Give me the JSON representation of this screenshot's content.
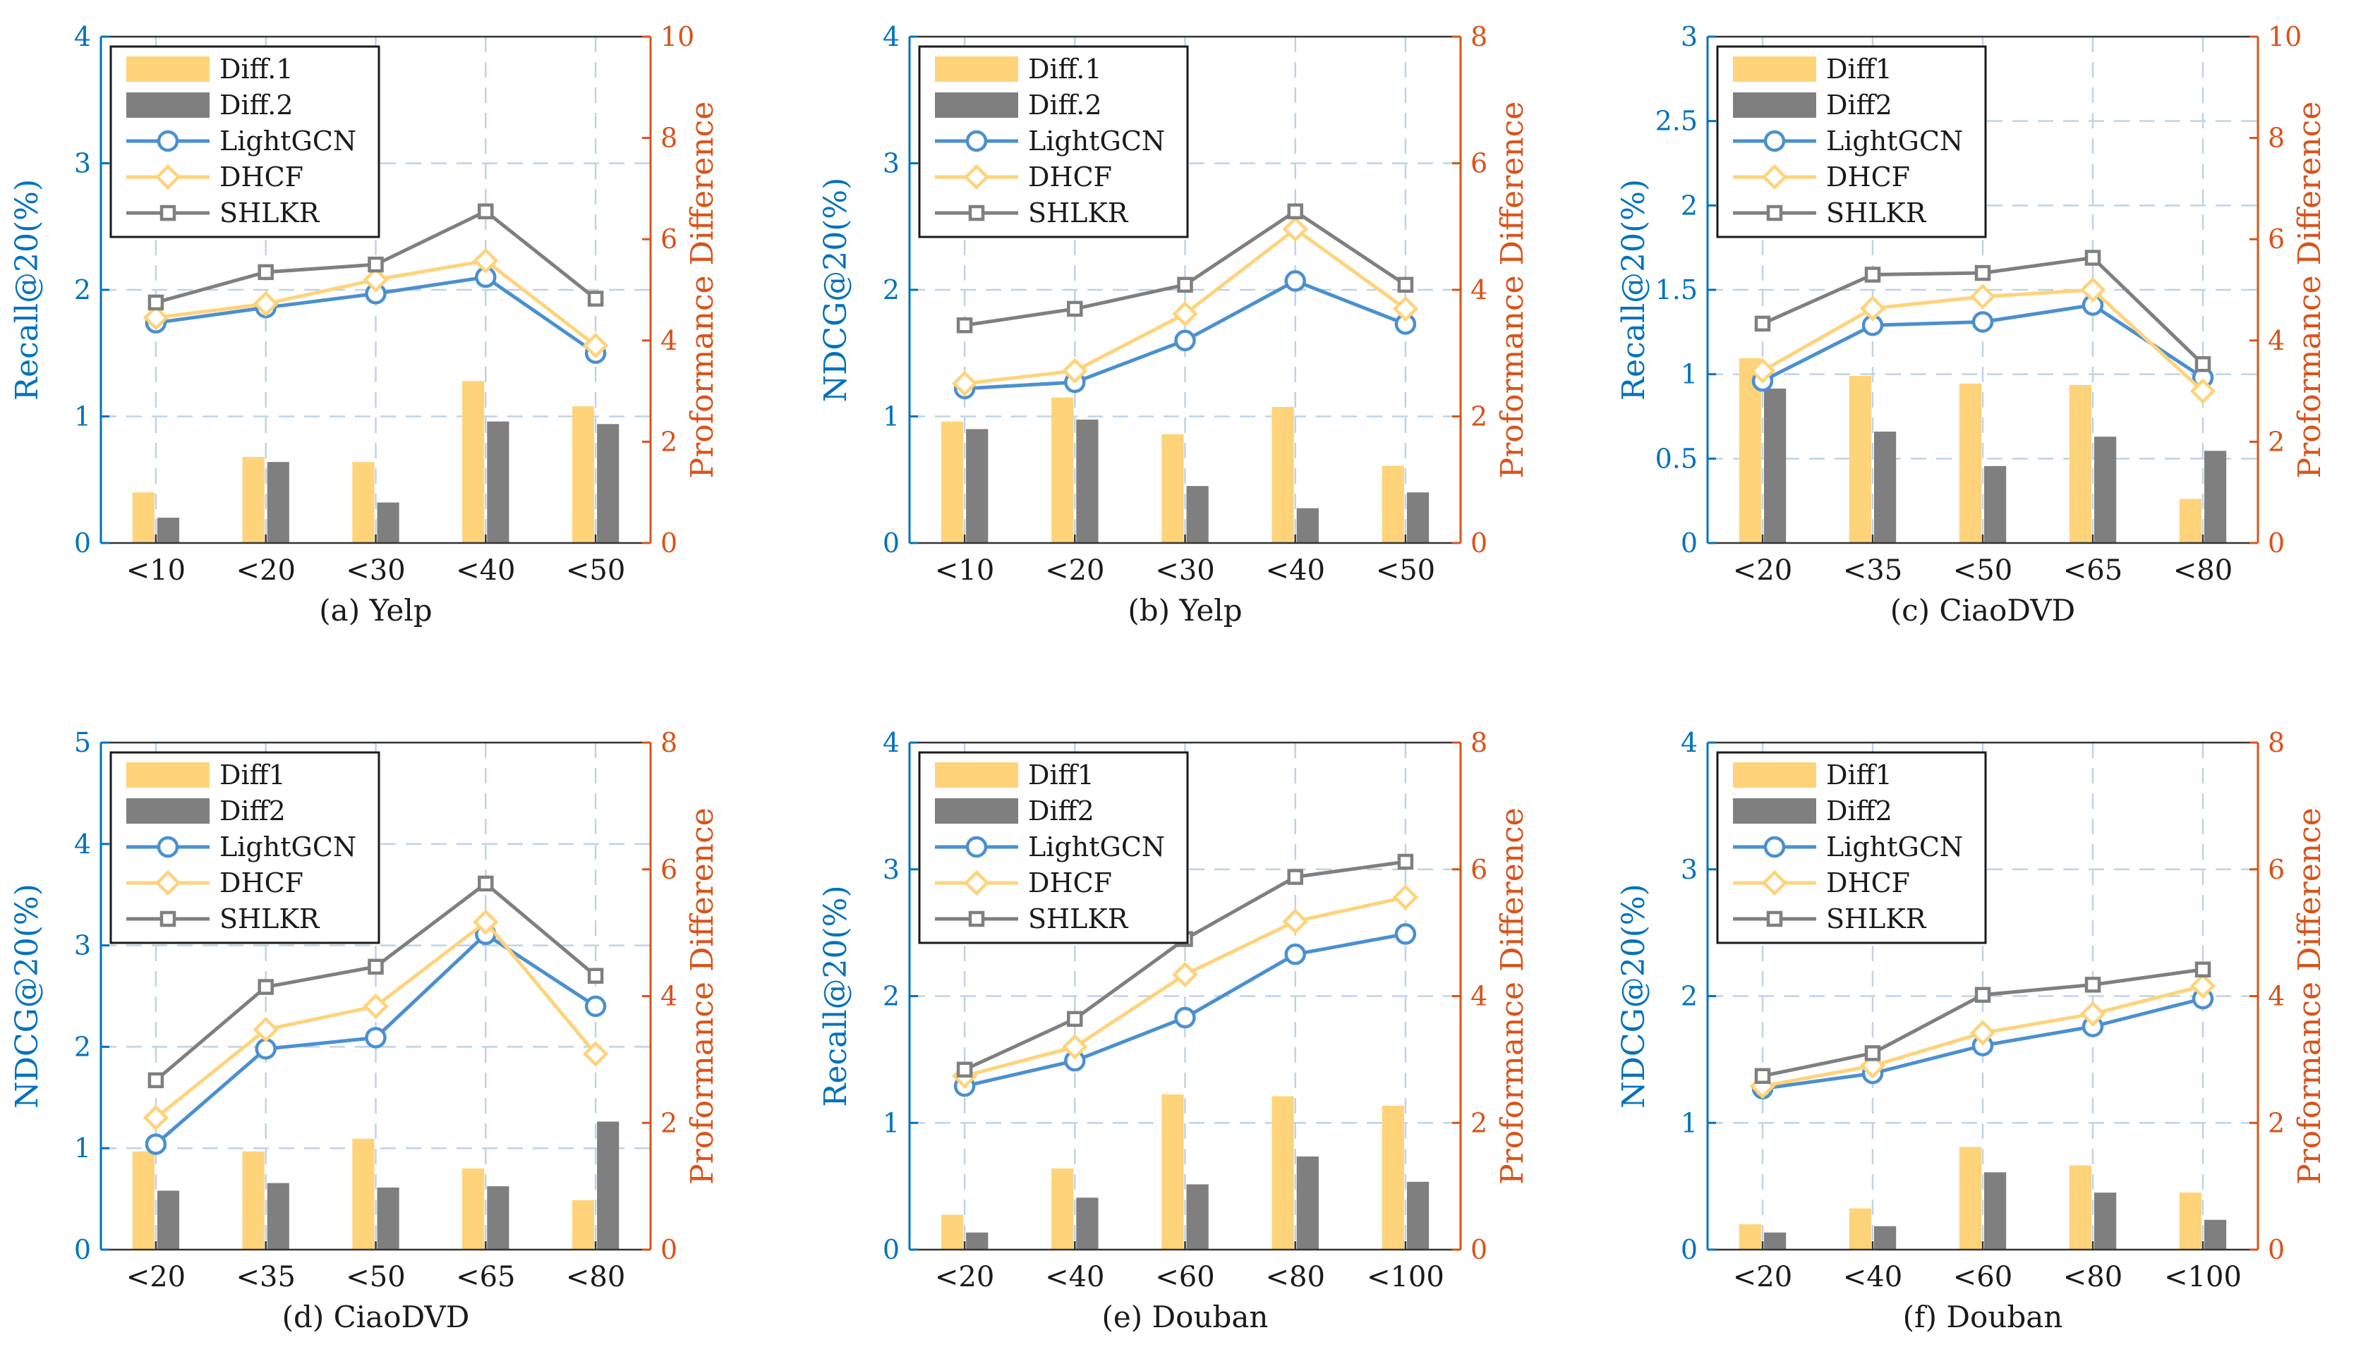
{
  "colors": {
    "left_axis": "#0072BD",
    "right_axis": "#D95319",
    "diff1": "#FFD37A",
    "diff2": "#7F7F7F",
    "lightgcn": "#4A90D0",
    "dhcf": "#FFD37A",
    "shlkr": "#7F7F7F",
    "grid": "#BFD3E6"
  },
  "chart_data": [
    {
      "type": "bar+line",
      "title": "(a) Yelp",
      "categories": [
        "<10",
        "<20",
        "<30",
        "<40",
        "<50"
      ],
      "ylabel": "Recall@20(%)",
      "ylabel_right": "Proformance Difference",
      "ylim": [
        0,
        4
      ],
      "yticks": [
        "0",
        "1",
        "2",
        "3",
        "4"
      ],
      "ylim_right": [
        0,
        10
      ],
      "yticks_right": [
        "0",
        "2",
        "4",
        "6",
        "8",
        "10"
      ],
      "legend": [
        "Diff.1",
        "Diff.2",
        "LightGCN",
        "DHCF",
        "SHLKR"
      ],
      "bars": [
        {
          "name": "Diff.1",
          "values": [
            1.0,
            1.7,
            1.6,
            3.2,
            2.7
          ]
        },
        {
          "name": "Diff.2",
          "values": [
            0.5,
            1.6,
            0.8,
            2.4,
            2.35
          ]
        }
      ],
      "lines": [
        {
          "name": "LightGCN",
          "values": [
            1.74,
            1.86,
            1.97,
            2.1,
            1.5
          ]
        },
        {
          "name": "DHCF",
          "values": [
            1.78,
            1.89,
            2.08,
            2.23,
            1.56
          ]
        },
        {
          "name": "SHLKR",
          "values": [
            1.9,
            2.14,
            2.2,
            2.62,
            1.93
          ]
        }
      ]
    },
    {
      "type": "bar+line",
      "title": "(b) Yelp",
      "categories": [
        "<10",
        "<20",
        "<30",
        "<40",
        "<50"
      ],
      "ylabel": "NDCG@20(%)",
      "ylabel_right": "Proformance Difference",
      "ylim": [
        0,
        4
      ],
      "yticks": [
        "0",
        "1",
        "2",
        "3",
        "4"
      ],
      "ylim_right": [
        0,
        8
      ],
      "yticks_right": [
        "0",
        "2",
        "4",
        "6",
        "8"
      ],
      "legend": [
        "Diff.1",
        "Diff.2",
        "LightGCN",
        "DHCF",
        "SHLKR"
      ],
      "bars": [
        {
          "name": "Diff.1",
          "values": [
            1.92,
            2.3,
            1.72,
            2.15,
            1.22
          ]
        },
        {
          "name": "Diff.2",
          "values": [
            1.8,
            1.95,
            0.9,
            0.55,
            0.8
          ]
        }
      ],
      "lines": [
        {
          "name": "LightGCN",
          "values": [
            1.22,
            1.27,
            1.6,
            2.07,
            1.73
          ]
        },
        {
          "name": "DHCF",
          "values": [
            1.26,
            1.36,
            1.81,
            2.48,
            1.85
          ]
        },
        {
          "name": "SHLKR",
          "values": [
            1.72,
            1.85,
            2.04,
            2.62,
            2.04
          ]
        }
      ]
    },
    {
      "type": "bar+line",
      "title": "(c) CiaoDVD",
      "categories": [
        "<20",
        "<35",
        "<50",
        "<65",
        "<80"
      ],
      "ylabel": "Recall@20(%)",
      "ylabel_right": "Proformance Difference",
      "ylim": [
        0,
        3
      ],
      "yticks": [
        "0",
        "0.5",
        "1",
        "1.5",
        "2",
        "2.5",
        "3"
      ],
      "ylim_right": [
        0,
        10
      ],
      "yticks_right": [
        "0",
        "2",
        "4",
        "6",
        "8",
        "10"
      ],
      "legend": [
        "Diff1",
        "Diff2",
        "LightGCN",
        "DHCF",
        "SHLKR"
      ],
      "bars": [
        {
          "name": "Diff1",
          "values": [
            3.65,
            3.3,
            3.15,
            3.12,
            0.87
          ]
        },
        {
          "name": "Diff2",
          "values": [
            3.05,
            2.2,
            1.52,
            2.1,
            1.82
          ]
        }
      ],
      "lines": [
        {
          "name": "LightGCN",
          "values": [
            0.96,
            1.29,
            1.31,
            1.41,
            0.98
          ]
        },
        {
          "name": "DHCF",
          "values": [
            1.02,
            1.39,
            1.46,
            1.5,
            0.9
          ]
        },
        {
          "name": "SHLKR",
          "values": [
            1.3,
            1.59,
            1.6,
            1.69,
            1.06
          ]
        }
      ]
    },
    {
      "type": "bar+line",
      "title": "(d) CiaoDVD",
      "categories": [
        "<20",
        "<35",
        "<50",
        "<65",
        "<80"
      ],
      "ylabel": "NDCG@20(%)",
      "ylabel_right": "Proformance Difference",
      "ylim": [
        0,
        5
      ],
      "yticks": [
        "0",
        "1",
        "2",
        "3",
        "4",
        "5"
      ],
      "ylim_right": [
        0,
        8
      ],
      "yticks_right": [
        "0",
        "2",
        "4",
        "6",
        "8"
      ],
      "legend": [
        "Diff1",
        "Diff2",
        "LightGCN",
        "DHCF",
        "SHLKR"
      ],
      "bars": [
        {
          "name": "Diff1",
          "values": [
            1.55,
            1.55,
            1.75,
            1.28,
            0.78
          ]
        },
        {
          "name": "Diff2",
          "values": [
            0.93,
            1.05,
            0.98,
            1.0,
            2.02
          ]
        }
      ],
      "lines": [
        {
          "name": "LightGCN",
          "values": [
            1.04,
            1.98,
            2.09,
            3.11,
            2.4
          ]
        },
        {
          "name": "DHCF",
          "values": [
            1.3,
            2.17,
            2.4,
            3.23,
            1.93
          ]
        },
        {
          "name": "SHLKR",
          "values": [
            1.67,
            2.59,
            2.79,
            3.61,
            2.7
          ]
        }
      ]
    },
    {
      "type": "bar+line",
      "title": "(e) Douban",
      "categories": [
        "<20",
        "<40",
        "<60",
        "<80",
        "<100"
      ],
      "ylabel": "Recall@20(%)",
      "ylabel_right": "Proformance Difference",
      "ylim": [
        0,
        4
      ],
      "yticks": [
        "0",
        "1",
        "2",
        "3",
        "4"
      ],
      "ylim_right": [
        0,
        8
      ],
      "yticks_right": [
        "0",
        "2",
        "4",
        "6",
        "8"
      ],
      "legend": [
        "Diff1",
        "Diff2",
        "LightGCN",
        "DHCF",
        "SHLKR"
      ],
      "bars": [
        {
          "name": "Diff1",
          "values": [
            0.55,
            1.28,
            2.45,
            2.42,
            2.27
          ]
        },
        {
          "name": "Diff2",
          "values": [
            0.27,
            0.82,
            1.03,
            1.47,
            1.07
          ]
        }
      ],
      "lines": [
        {
          "name": "LightGCN",
          "values": [
            1.29,
            1.49,
            1.83,
            2.33,
            2.49
          ]
        },
        {
          "name": "DHCF",
          "values": [
            1.37,
            1.6,
            2.17,
            2.59,
            2.78
          ]
        },
        {
          "name": "SHLKR",
          "values": [
            1.42,
            1.82,
            2.45,
            2.94,
            3.06
          ]
        }
      ]
    },
    {
      "type": "bar+line",
      "title": "(f) Douban",
      "categories": [
        "<20",
        "<40",
        "<60",
        "<80",
        "<100"
      ],
      "ylabel": "NDCG@20(%)",
      "ylabel_right": "Proformance Difference",
      "ylim": [
        0,
        4
      ],
      "yticks": [
        "0",
        "1",
        "2",
        "3",
        "4"
      ],
      "ylim_right": [
        0,
        8
      ],
      "yticks_right": [
        "0",
        "2",
        "4",
        "6",
        "8"
      ],
      "legend": [
        "Diff1",
        "Diff2",
        "LightGCN",
        "DHCF",
        "SHLKR"
      ],
      "bars": [
        {
          "name": "Diff1",
          "values": [
            0.4,
            0.65,
            1.62,
            1.33,
            0.9
          ]
        },
        {
          "name": "Diff2",
          "values": [
            0.27,
            0.37,
            1.22,
            0.9,
            0.47
          ]
        }
      ],
      "lines": [
        {
          "name": "LightGCN",
          "values": [
            1.27,
            1.39,
            1.61,
            1.76,
            1.98
          ]
        },
        {
          "name": "DHCF",
          "values": [
            1.29,
            1.45,
            1.71,
            1.86,
            2.08
          ]
        },
        {
          "name": "SHLKR",
          "values": [
            1.37,
            1.55,
            2.01,
            2.09,
            2.21
          ]
        }
      ]
    }
  ]
}
